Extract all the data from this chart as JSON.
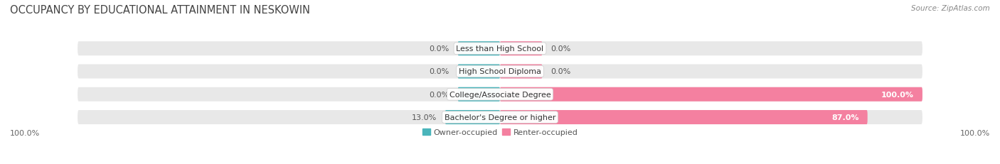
{
  "title": "OCCUPANCY BY EDUCATIONAL ATTAINMENT IN NESKOWIN",
  "source": "Source: ZipAtlas.com",
  "categories": [
    "Less than High School",
    "High School Diploma",
    "College/Associate Degree",
    "Bachelor's Degree or higher"
  ],
  "owner_values": [
    0.0,
    0.0,
    0.0,
    13.0
  ],
  "renter_values": [
    0.0,
    0.0,
    100.0,
    87.0
  ],
  "owner_color": "#4ab5bb",
  "renter_color": "#f480a0",
  "bar_bg_color": "#e8e8e8",
  "bar_height": 0.62,
  "axis_label_left": "100.0%",
  "axis_label_right": "100.0%",
  "title_fontsize": 10.5,
  "source_fontsize": 7.5,
  "label_fontsize": 8,
  "category_fontsize": 8,
  "legend_fontsize": 8,
  "fig_width": 14.06,
  "fig_height": 2.32
}
